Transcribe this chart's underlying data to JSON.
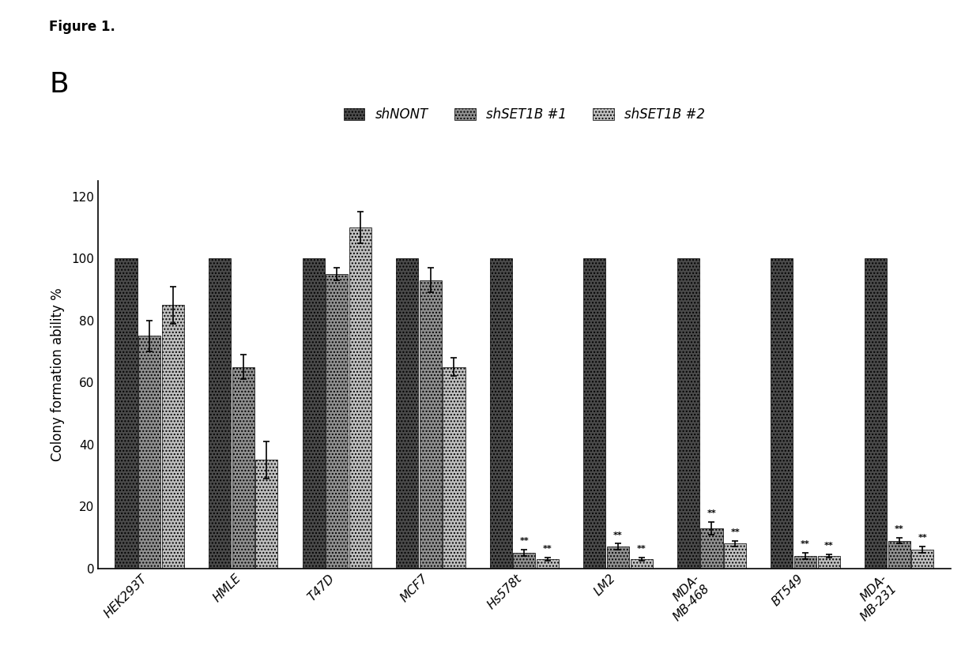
{
  "categories": [
    "HEK293T",
    "HMLE",
    "T47D",
    "MCF7",
    "Hs578t",
    "LM2",
    "MDA-\nMB-468",
    "BT549",
    "MDA-\nMB-231"
  ],
  "series": [
    {
      "label": "shNONT",
      "values": [
        100,
        100,
        100,
        100,
        100,
        100,
        100,
        100,
        100
      ],
      "errors": [
        0,
        0,
        0,
        0,
        0,
        0,
        0,
        0,
        0
      ],
      "color": "#4a4a4a",
      "hatch": "////"
    },
    {
      "label": "shSET1B #1",
      "values": [
        75,
        65,
        95,
        93,
        5,
        7,
        13,
        4,
        9
      ],
      "errors": [
        5,
        4,
        2,
        4,
        1,
        1,
        2,
        1,
        1
      ],
      "color": "#909090",
      "hatch": "////"
    },
    {
      "label": "shSET1B #2",
      "values": [
        85,
        35,
        110,
        65,
        3,
        3,
        8,
        4,
        6
      ],
      "errors": [
        6,
        6,
        5,
        3,
        0.5,
        0.5,
        1,
        0.5,
        1
      ],
      "color": "#c0c0c0",
      "hatch": "////"
    }
  ],
  "ylabel": "Colony formation ability %",
  "ylim": [
    0,
    125
  ],
  "yticks": [
    0,
    20,
    40,
    60,
    80,
    100,
    120
  ],
  "figure_label": "B",
  "figure_title": "Figure 1.",
  "sig_cat_indices": [
    4,
    5,
    6,
    7,
    8
  ],
  "sig_series": [
    1,
    2
  ],
  "background_color": "#ffffff",
  "bar_width": 0.25,
  "legend_labels": [
    "shNONT",
    "shSET1B #1",
    "shSET1B #2"
  ]
}
